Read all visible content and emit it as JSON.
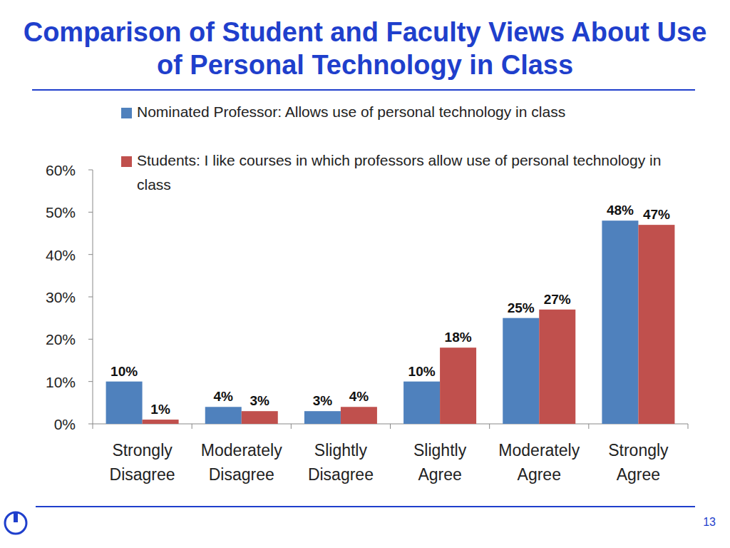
{
  "chart_data": {
    "type": "bar",
    "title": "Comparison of Student and Faculty Views About Use of Personal Technology in Class",
    "categories": [
      "Strongly Disagree",
      "Moderately Disagree",
      "Slightly Disagree",
      "Slightly Agree",
      "Moderately Agree",
      "Strongly Agree"
    ],
    "series": [
      {
        "name": "Nominated Professor: Allows use of personal technology in class",
        "color": "#4f81bd",
        "values": [
          10,
          4,
          3,
          10,
          25,
          48
        ],
        "value_labels": [
          "10%",
          "4%",
          "3%",
          "10%",
          "25%",
          "48%"
        ]
      },
      {
        "name": "Students: I like courses in which professors allow use of personal technology in class",
        "color": "#c0504d",
        "values": [
          1,
          3,
          4,
          18,
          27,
          47
        ],
        "value_labels": [
          "1%",
          "3%",
          "4%",
          "18%",
          "27%",
          "47%"
        ]
      }
    ],
    "ylim": [
      0,
      60
    ],
    "yticks": [
      {
        "value": 0,
        "label": "0%"
      },
      {
        "value": 10,
        "label": "10%"
      },
      {
        "value": 20,
        "label": "20%"
      },
      {
        "value": 30,
        "label": "30%"
      },
      {
        "value": 40,
        "label": "40%"
      },
      {
        "value": 50,
        "label": "50%"
      },
      {
        "value": 60,
        "label": "60%"
      }
    ],
    "grid": false,
    "legend": "top",
    "data_labels": true
  },
  "page_number": "13"
}
